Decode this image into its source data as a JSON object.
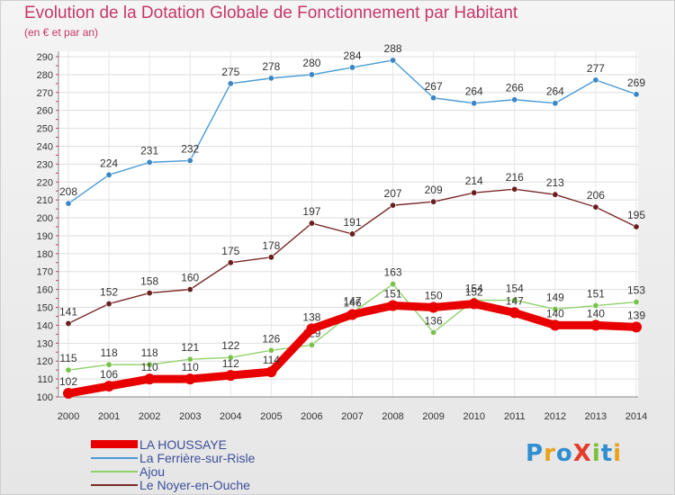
{
  "header": {
    "title": "Evolution de la Dotation Globale de Fonctionnement par Habitant",
    "subtitle": "(en € et par an)"
  },
  "logo": {
    "text": "ProXiti",
    "letters": [
      "P",
      "r",
      "o",
      "X",
      "i",
      "t",
      "i"
    ],
    "colors": [
      "#2f8fd0",
      "#e8a21c",
      "#2f8fd0",
      "#e53b2c",
      "#7bbf3a",
      "#2f8fd0",
      "#e8a21c"
    ]
  },
  "chart_data": {
    "type": "line",
    "title": "Evolution de la Dotation Globale de Fonctionnement par Habitant",
    "subtitle": "(en € et par an)",
    "xlabel": "",
    "ylabel": "",
    "ylim": [
      100,
      290
    ],
    "ytick_step": 10,
    "grid": true,
    "legend_position": "bottom-left",
    "categories": [
      "2000",
      "2001",
      "2002",
      "2003",
      "2004",
      "2005",
      "2006",
      "2007",
      "2008",
      "2009",
      "2010",
      "2011",
      "2012",
      "2013",
      "2014"
    ],
    "series": [
      {
        "name": "La Ferrière-sur-Risle",
        "color": "#4a9bd6",
        "marker": "#3a86c5",
        "values": [
          208,
          224,
          231,
          232,
          275,
          278,
          280,
          284,
          288,
          267,
          264,
          266,
          264,
          277,
          269
        ],
        "labels": true
      },
      {
        "name": "Le Noyer-en-Ouche",
        "color": "#7a2a2a",
        "marker": "#6a1f1f",
        "values": [
          141,
          152,
          158,
          160,
          175,
          178,
          197,
          191,
          207,
          209,
          214,
          216,
          213,
          206,
          195
        ],
        "labels": true
      },
      {
        "name": "Ajou",
        "color": "#8fd16a",
        "marker": "#77c24c",
        "values": [
          115,
          118,
          118,
          121,
          122,
          126,
          129,
          147,
          163,
          136,
          154,
          154,
          149,
          151,
          153
        ],
        "labels": true
      },
      {
        "name": "LA HOUSSAYE",
        "color": "#e80000",
        "marker": "#e80000",
        "values": [
          102,
          106,
          110,
          110,
          112,
          114,
          138,
          146,
          151,
          150,
          152,
          147,
          140,
          140,
          139
        ],
        "labels": true,
        "thick": true
      }
    ],
    "legend_order": [
      "LA HOUSSAYE",
      "La Ferrière-sur-Risle",
      "Ajou",
      "Le Noyer-en-Ouche"
    ]
  }
}
